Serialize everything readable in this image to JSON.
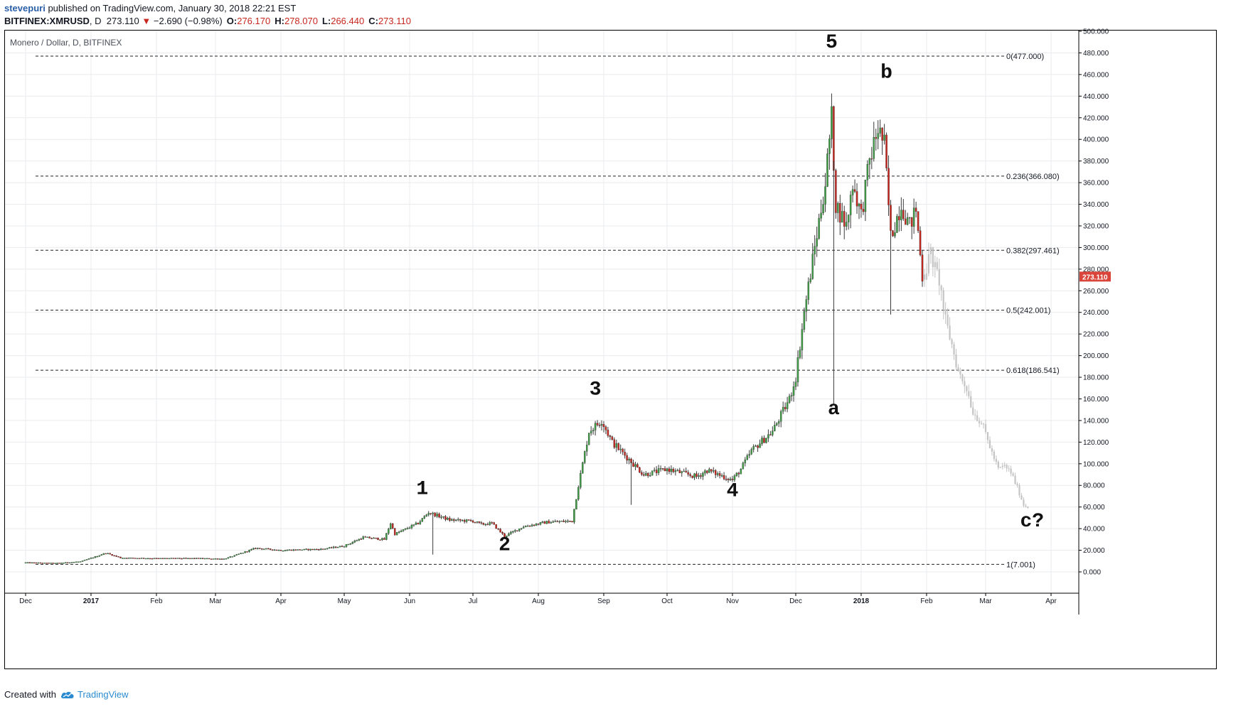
{
  "header": {
    "author": "stevepuri",
    "published_text": "published on TradingView.com, January 30, 2018 22:21 EST",
    "symbol": "BITFINEX:XMRUSD",
    "interval": "D",
    "last": "273.110",
    "change": "−2.690 (−0.98%)",
    "change_arrow": "▼",
    "o_label": "O:",
    "o_value": "276.170",
    "h_label": "H:",
    "h_value": "278.070",
    "l_label": "L:",
    "l_value": "266.440",
    "c_label": "C:",
    "c_value": "273.110",
    "negative_color": "#c7271f"
  },
  "footer": {
    "created_with": "Created with",
    "brand": "TradingView",
    "brand_icon": "tradingview-cloud-icon"
  },
  "chart_data": {
    "type": "candlestick",
    "title": "Monero / Dollar, D, BITFINEX",
    "x_labels": [
      "Dec",
      "2017",
      "Feb",
      "Mar",
      "Apr",
      "May",
      "Jun",
      "Jul",
      "Aug",
      "Sep",
      "Oct",
      "Nov",
      "Dec",
      "2018",
      "Feb",
      "Mar",
      "Apr"
    ],
    "x_ticks_date": [
      "2016-12-01",
      "2017-01-01",
      "2017-02-01",
      "2017-03-01",
      "2017-04-01",
      "2017-05-01",
      "2017-06-01",
      "2017-07-01",
      "2017-08-01",
      "2017-09-01",
      "2017-10-01",
      "2017-11-01",
      "2017-12-01",
      "2018-01-01",
      "2018-02-01",
      "2018-03-01",
      "2018-04-01"
    ],
    "y_ticks": [
      "500.000",
      "480.000",
      "460.000",
      "440.000",
      "420.000",
      "400.000",
      "380.000",
      "360.000",
      "340.000",
      "320.000",
      "300.000",
      "280.000",
      "260.000",
      "240.000",
      "220.000",
      "200.000",
      "180.000",
      "160.000",
      "140.000",
      "120.000",
      "100.000",
      "80.000",
      "60.000",
      "40.000",
      "20.000",
      "0.000"
    ],
    "ylim": [
      -20,
      505
    ],
    "current_price_label": "273.110",
    "colors": {
      "up": "#3f9c45",
      "down": "#c7271f",
      "projection": "#c4c4c4",
      "price_tag": "#d9453a",
      "grid": "#e9ebee"
    },
    "fib_levels": [
      {
        "ratio": "0",
        "price": 477.0,
        "label": "0(477.000)"
      },
      {
        "ratio": "0.236",
        "price": 366.08,
        "label": "0.236(366.080)"
      },
      {
        "ratio": "0.382",
        "price": 297.461,
        "label": "0.382(297.461)"
      },
      {
        "ratio": "0.5",
        "price": 242.001,
        "label": "0.5(242.001)"
      },
      {
        "ratio": "0.618",
        "price": 186.541,
        "label": "0.618(186.541)"
      },
      {
        "ratio": "1",
        "price": 7.001,
        "label": "1(7.001)"
      }
    ],
    "price_path": [
      [
        "2016-12-01",
        8.6
      ],
      [
        "2016-12-15",
        8.0
      ],
      [
        "2016-12-27",
        9.5
      ],
      [
        "2017-01-03",
        14.0
      ],
      [
        "2017-01-08",
        17.5
      ],
      [
        "2017-01-15",
        13.0
      ],
      [
        "2017-02-01",
        12.5
      ],
      [
        "2017-02-20",
        12.5
      ],
      [
        "2017-03-05",
        12.0
      ],
      [
        "2017-03-10",
        15.0
      ],
      [
        "2017-03-20",
        22.0
      ],
      [
        "2017-04-01",
        20.0
      ],
      [
        "2017-04-20",
        21.0
      ],
      [
        "2017-05-01",
        24.0
      ],
      [
        "2017-05-10",
        32.0
      ],
      [
        "2017-05-20",
        30.0
      ],
      [
        "2017-05-23",
        45.0
      ],
      [
        "2017-05-25",
        35.0
      ],
      [
        "2017-06-05",
        45.0
      ],
      [
        "2017-06-10",
        55.0
      ],
      [
        "2017-06-20",
        48.0
      ],
      [
        "2017-07-01",
        47.0
      ],
      [
        "2017-07-05",
        44.0
      ],
      [
        "2017-07-10",
        45.0
      ],
      [
        "2017-07-16",
        33.0
      ],
      [
        "2017-07-25",
        42.0
      ],
      [
        "2017-08-05",
        46.0
      ],
      [
        "2017-08-17",
        47.0
      ],
      [
        "2017-08-20",
        80.0
      ],
      [
        "2017-08-25",
        130.0
      ],
      [
        "2017-08-31",
        140.0
      ],
      [
        "2017-09-05",
        120.0
      ],
      [
        "2017-09-15",
        100.0
      ],
      [
        "2017-09-20",
        90.0
      ],
      [
        "2017-10-01",
        95.0
      ],
      [
        "2017-10-15",
        88.0
      ],
      [
        "2017-10-20",
        94.0
      ],
      [
        "2017-11-01",
        85.0
      ],
      [
        "2017-11-05",
        95.0
      ],
      [
        "2017-11-10",
        112.0
      ],
      [
        "2017-11-20",
        130.0
      ],
      [
        "2017-11-28",
        160.0
      ],
      [
        "2017-12-01",
        180.0
      ],
      [
        "2017-12-05",
        240.0
      ],
      [
        "2017-12-10",
        300.0
      ],
      [
        "2017-12-15",
        360.0
      ],
      [
        "2017-12-18",
        420.0
      ],
      [
        "2017-12-20",
        340.0
      ],
      [
        "2017-12-25",
        320.0
      ],
      [
        "2017-12-28",
        360.0
      ],
      [
        "2018-01-01",
        330.0
      ],
      [
        "2018-01-05",
        380.0
      ],
      [
        "2018-01-09",
        410.0
      ],
      [
        "2018-01-12",
        395.0
      ],
      [
        "2018-01-15",
        310.0
      ],
      [
        "2018-01-20",
        340.0
      ],
      [
        "2018-01-24",
        320.0
      ],
      [
        "2018-01-27",
        335.0
      ],
      [
        "2018-01-30",
        273.1
      ]
    ],
    "projection_path": [
      [
        "2018-01-31",
        275.0
      ],
      [
        "2018-02-03",
        295.0
      ],
      [
        "2018-02-05",
        280.0
      ],
      [
        "2018-02-07",
        270.0
      ],
      [
        "2018-02-10",
        232.0
      ],
      [
        "2018-02-13",
        210.0
      ],
      [
        "2018-02-16",
        185.0
      ],
      [
        "2018-02-20",
        170.0
      ],
      [
        "2018-02-23",
        148.0
      ],
      [
        "2018-02-27",
        138.0
      ],
      [
        "2018-03-01",
        128.0
      ],
      [
        "2018-03-04",
        110.0
      ],
      [
        "2018-03-07",
        95.0
      ],
      [
        "2018-03-10",
        98.0
      ],
      [
        "2018-03-13",
        92.0
      ],
      [
        "2018-03-16",
        78.0
      ],
      [
        "2018-03-19",
        62.0
      ],
      [
        "2018-03-21",
        60.0
      ]
    ],
    "wave_labels": [
      {
        "text": "1",
        "date": "2017-06-07",
        "price": 72
      },
      {
        "text": "2",
        "date": "2017-07-16",
        "price": 20
      },
      {
        "text": "3",
        "date": "2017-08-28",
        "price": 164
      },
      {
        "text": "4",
        "date": "2017-11-01",
        "price": 70
      },
      {
        "text": "5",
        "date": "2017-12-18",
        "price": 485
      },
      {
        "text": "a",
        "date": "2017-12-19",
        "price": 146
      },
      {
        "text": "b",
        "date": "2018-01-13",
        "price": 457
      },
      {
        "text": "c?",
        "date": "2018-03-23",
        "price": 42
      }
    ]
  }
}
